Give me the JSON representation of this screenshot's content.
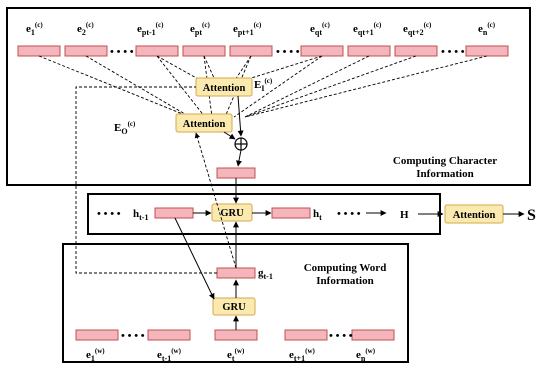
{
  "char_region": {
    "labels": [
      {
        "base": "e",
        "sub": "1",
        "sup": "(c)"
      },
      {
        "base": "e",
        "sub": "2",
        "sup": "(c)"
      },
      {
        "base": "e",
        "sub": "pt-1",
        "sup": "(c)"
      },
      {
        "base": "e",
        "sub": "pt",
        "sup": "(c)"
      },
      {
        "base": "e",
        "sub": "pt+1",
        "sup": "(c)"
      },
      {
        "base": "e",
        "sub": "qt",
        "sup": "(c)"
      },
      {
        "base": "e",
        "sub": "qt+1",
        "sup": "(c)"
      },
      {
        "base": "e",
        "sub": "qt+2",
        "sup": "(c)"
      },
      {
        "base": "e",
        "sub": "n",
        "sup": "(c)"
      }
    ],
    "attention_top": "Attention",
    "attention_bottom": "Attention",
    "e_i": {
      "base": "E",
      "sub": "I",
      "sup": "(c)"
    },
    "e_o": {
      "base": "E",
      "sub": "O",
      "sup": "(c)"
    },
    "plus": "⊕",
    "caption": [
      "Computing Character",
      "Information"
    ]
  },
  "middle": {
    "h_prev": {
      "base": "h",
      "sub": "t-1"
    },
    "gru": "GRU",
    "h_t": {
      "base": "h",
      "sub": "t"
    },
    "H": "H",
    "attention": "Attention",
    "S": "S"
  },
  "word_region": {
    "caption": [
      "Computing Word",
      "Information"
    ],
    "g_prev": {
      "base": "g",
      "sub": "t-1"
    },
    "gru": "GRU",
    "labels": [
      {
        "base": "e",
        "sub": "1",
        "sup": "(w)"
      },
      {
        "base": "e",
        "sub": "t-1",
        "sup": "(w)"
      },
      {
        "base": "e",
        "sub": "t",
        "sup": "(w)"
      },
      {
        "base": "e",
        "sub": "t+1",
        "sup": "(w)"
      },
      {
        "base": "e",
        "sub": "n",
        "sup": "(w)"
      }
    ]
  },
  "ellipsis": "• • • •",
  "colors": {
    "vector": "#f4b6bc",
    "vector_border": "#c0504d",
    "node": "#fbeab0",
    "node_border": "#d4a84a"
  }
}
